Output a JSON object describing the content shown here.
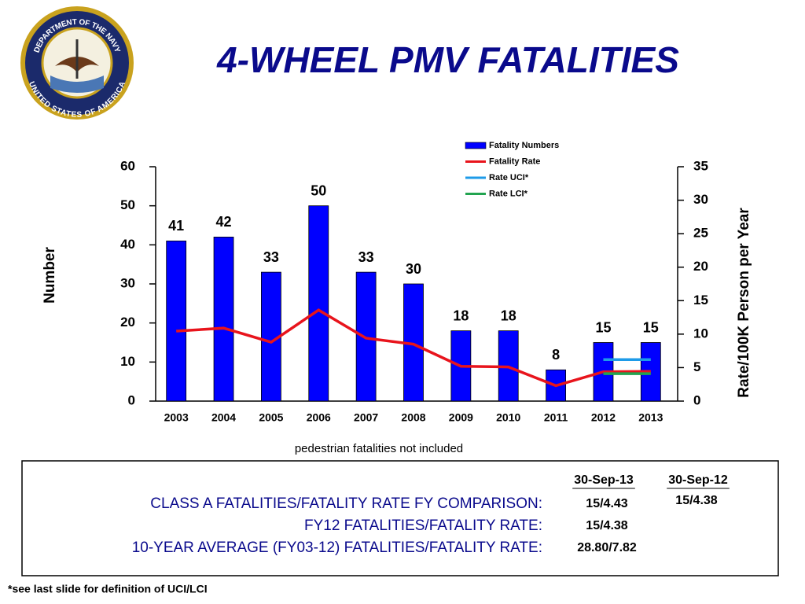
{
  "title": "4-WHEEL PMV  FATALITIES",
  "logo": {
    "top_text": "DEPARTMENT OF THE NAVY",
    "bottom_text": "UNITED STATES OF AMERICA"
  },
  "chart_data": {
    "type": "bar",
    "categories": [
      "2003",
      "2004",
      "2005",
      "2006",
      "2007",
      "2008",
      "2009",
      "2010",
      "2011",
      "2012",
      "2013"
    ],
    "series": [
      {
        "name": "Fatality Numbers",
        "type": "bar",
        "color": "#0000ff",
        "axis": "y",
        "values": [
          41,
          42,
          33,
          50,
          33,
          30,
          18,
          18,
          8,
          15,
          15
        ]
      },
      {
        "name": "Fatality Rate",
        "type": "line",
        "color": "#e8141c",
        "axis": "y2",
        "values": [
          10.45,
          10.9,
          8.8,
          13.6,
          9.4,
          8.5,
          5.2,
          5.1,
          2.3,
          4.38,
          4.43
        ]
      },
      {
        "name": "Rate UCI*",
        "type": "line",
        "color": "#1e9be8",
        "axis": "y2",
        "values": [
          null,
          null,
          null,
          null,
          null,
          null,
          null,
          null,
          null,
          6.2,
          6.2
        ]
      },
      {
        "name": "Rate LCI*",
        "type": "line",
        "color": "#22a450",
        "axis": "y2",
        "values": [
          null,
          null,
          null,
          null,
          null,
          null,
          null,
          null,
          null,
          4.1,
          4.1
        ]
      }
    ],
    "ylabel": "Number",
    "y2label": "Rate/100K Person per Year",
    "ylim": [
      0,
      60
    ],
    "yticks": [
      0,
      10,
      20,
      30,
      40,
      50,
      60
    ],
    "y2lim": [
      0,
      35
    ],
    "y2ticks": [
      0,
      5,
      10,
      15,
      20,
      25,
      30,
      35
    ],
    "legend": "upper right"
  },
  "note": "pedestrian fatalities not included",
  "comparison": {
    "headers": [
      "30-Sep-13",
      "30-Sep-12"
    ],
    "rows": [
      [
        "CLASS A FATALITIES/FATALITY RATE FY COMPARISON:",
        "15/4.43",
        "15/4.38"
      ],
      [
        "FY12 FATALITIES/FATALITY RATE:",
        "15/4.38"
      ],
      [
        "10-YEAR AVERAGE (FY03-12) FATALITIES/FATALITY RATE:",
        "28.80/7.82"
      ]
    ]
  },
  "footnote": "*see last slide for definition of UCI/LCI"
}
